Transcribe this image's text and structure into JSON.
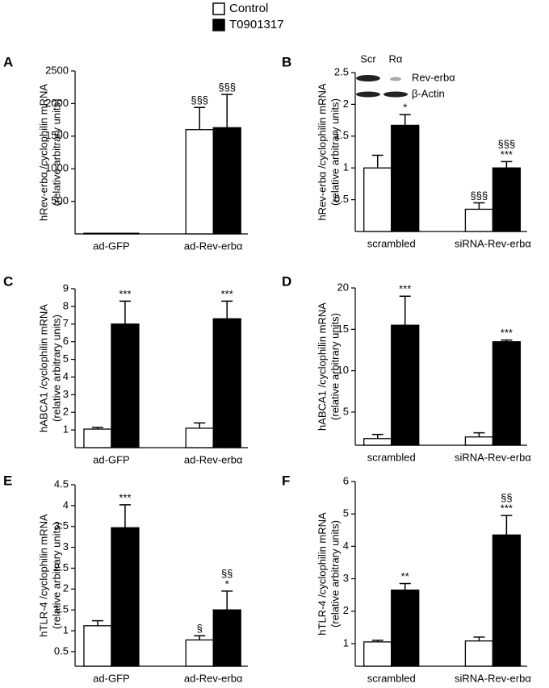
{
  "legend": [
    {
      "name": "Control",
      "color": "#ffffff"
    },
    {
      "name": "T0901317",
      "color": "#000000"
    }
  ],
  "chart_data": [
    {
      "type": "bar",
      "panel": "A",
      "ylabel": [
        "hRev-erbα /cyclophilin mRNA",
        "(relative arbitrary units)"
      ],
      "categories": [
        "ad-GFP",
        "ad-Rev-erbα"
      ],
      "ylim": [
        0,
        2500
      ],
      "yticks": [
        500,
        1000,
        1500,
        2000,
        2500
      ],
      "series": [
        {
          "values": [
            10,
            1600
          ],
          "errors": [
            0,
            340
          ],
          "annotations": [
            null,
            [
              "§§§"
            ]
          ]
        },
        {
          "values": [
            10,
            1630
          ],
          "errors": [
            0,
            510
          ],
          "annotations": [
            null,
            [
              "§§§"
            ]
          ]
        }
      ]
    },
    {
      "type": "bar",
      "panel": "B",
      "ylabel": [
        "hRev-erbα /cyclophilin mRNA",
        "(relative arbitrary units)"
      ],
      "categories": [
        "scrambled",
        "siRNA-Rev-erbα"
      ],
      "ylim": [
        0,
        2.5
      ],
      "yticks": [
        0.5,
        1,
        1.5,
        2,
        2.5
      ],
      "inset": {
        "lanes": [
          "Scr",
          "Rα"
        ],
        "bands": [
          "Rev-erbα",
          "β-Actin"
        ]
      },
      "series": [
        {
          "values": [
            1.0,
            0.35
          ],
          "errors": [
            0.2,
            0.1
          ],
          "annotations": [
            null,
            [
              "§§§"
            ]
          ]
        },
        {
          "values": [
            1.67,
            1.0
          ],
          "errors": [
            0.17,
            0.1
          ],
          "annotations": [
            [
              "*"
            ],
            [
              "§§§",
              "***"
            ]
          ]
        }
      ]
    },
    {
      "type": "bar",
      "panel": "C",
      "ylabel": [
        "hABCA1 /cyclophilin mRNA",
        "(relative arbitrary units)"
      ],
      "categories": [
        "ad-GFP",
        "ad-Rev-erbα"
      ],
      "ylim": [
        0,
        9
      ],
      "yticks": [
        1,
        2,
        3,
        4,
        5,
        6,
        7,
        8,
        9
      ],
      "series": [
        {
          "values": [
            1.05,
            1.1
          ],
          "errors": [
            0.1,
            0.3
          ],
          "annotations": [
            null,
            null
          ]
        },
        {
          "values": [
            7.0,
            7.3
          ],
          "errors": [
            1.3,
            1.0
          ],
          "annotations": [
            [
              "***"
            ],
            [
              "***"
            ]
          ]
        }
      ]
    },
    {
      "type": "bar",
      "panel": "D",
      "ylabel": [
        "hABCA1 /cyclophilin mRNA",
        "(relative arbitrary units)"
      ],
      "categories": [
        "scrambled",
        "siRNA-Rev-erbα"
      ],
      "ylim": [
        1,
        20
      ],
      "yticks": [
        5,
        10,
        15,
        20
      ],
      "series": [
        {
          "values": [
            1.8,
            2.0
          ],
          "errors": [
            0.5,
            0.5
          ],
          "annotations": [
            null,
            null
          ]
        },
        {
          "values": [
            15.5,
            13.5
          ],
          "errors": [
            3.5,
            0.2
          ],
          "annotations": [
            [
              "***"
            ],
            [
              "***"
            ]
          ]
        }
      ]
    },
    {
      "type": "bar",
      "panel": "E",
      "ylabel": [
        "hTLR-4 /cyclophilin mRNA",
        "(relative arbitrary units)"
      ],
      "categories": [
        "ad-GFP",
        "ad-Rev-erbα"
      ],
      "ylim": [
        0.15,
        4.5
      ],
      "yticks": [
        0.5,
        1,
        1.5,
        2,
        2.5,
        3,
        3.5,
        4,
        4.5
      ],
      "series": [
        {
          "values": [
            1.12,
            0.78
          ],
          "errors": [
            0.12,
            0.1
          ],
          "annotations": [
            null,
            [
              "§"
            ]
          ]
        },
        {
          "values": [
            3.47,
            1.5
          ],
          "errors": [
            0.55,
            0.45
          ],
          "annotations": [
            [
              "***"
            ],
            [
              "§§",
              "*"
            ]
          ]
        }
      ]
    },
    {
      "type": "bar",
      "panel": "F",
      "ylabel": [
        "hTLR-4 /cyclophilin mRNA",
        "(relative arbitrary units)"
      ],
      "categories": [
        "scrambled",
        "siRNA-Rev-erbα"
      ],
      "ylim": [
        0.3,
        6
      ],
      "yticks": [
        1,
        2,
        3,
        4,
        5,
        6
      ],
      "series": [
        {
          "values": [
            1.05,
            1.08
          ],
          "errors": [
            0.05,
            0.12
          ],
          "annotations": [
            null,
            null
          ]
        },
        {
          "values": [
            2.65,
            4.35
          ],
          "errors": [
            0.2,
            0.6
          ],
          "annotations": [
            [
              "**"
            ],
            [
              "§§",
              "***"
            ]
          ]
        }
      ]
    }
  ]
}
